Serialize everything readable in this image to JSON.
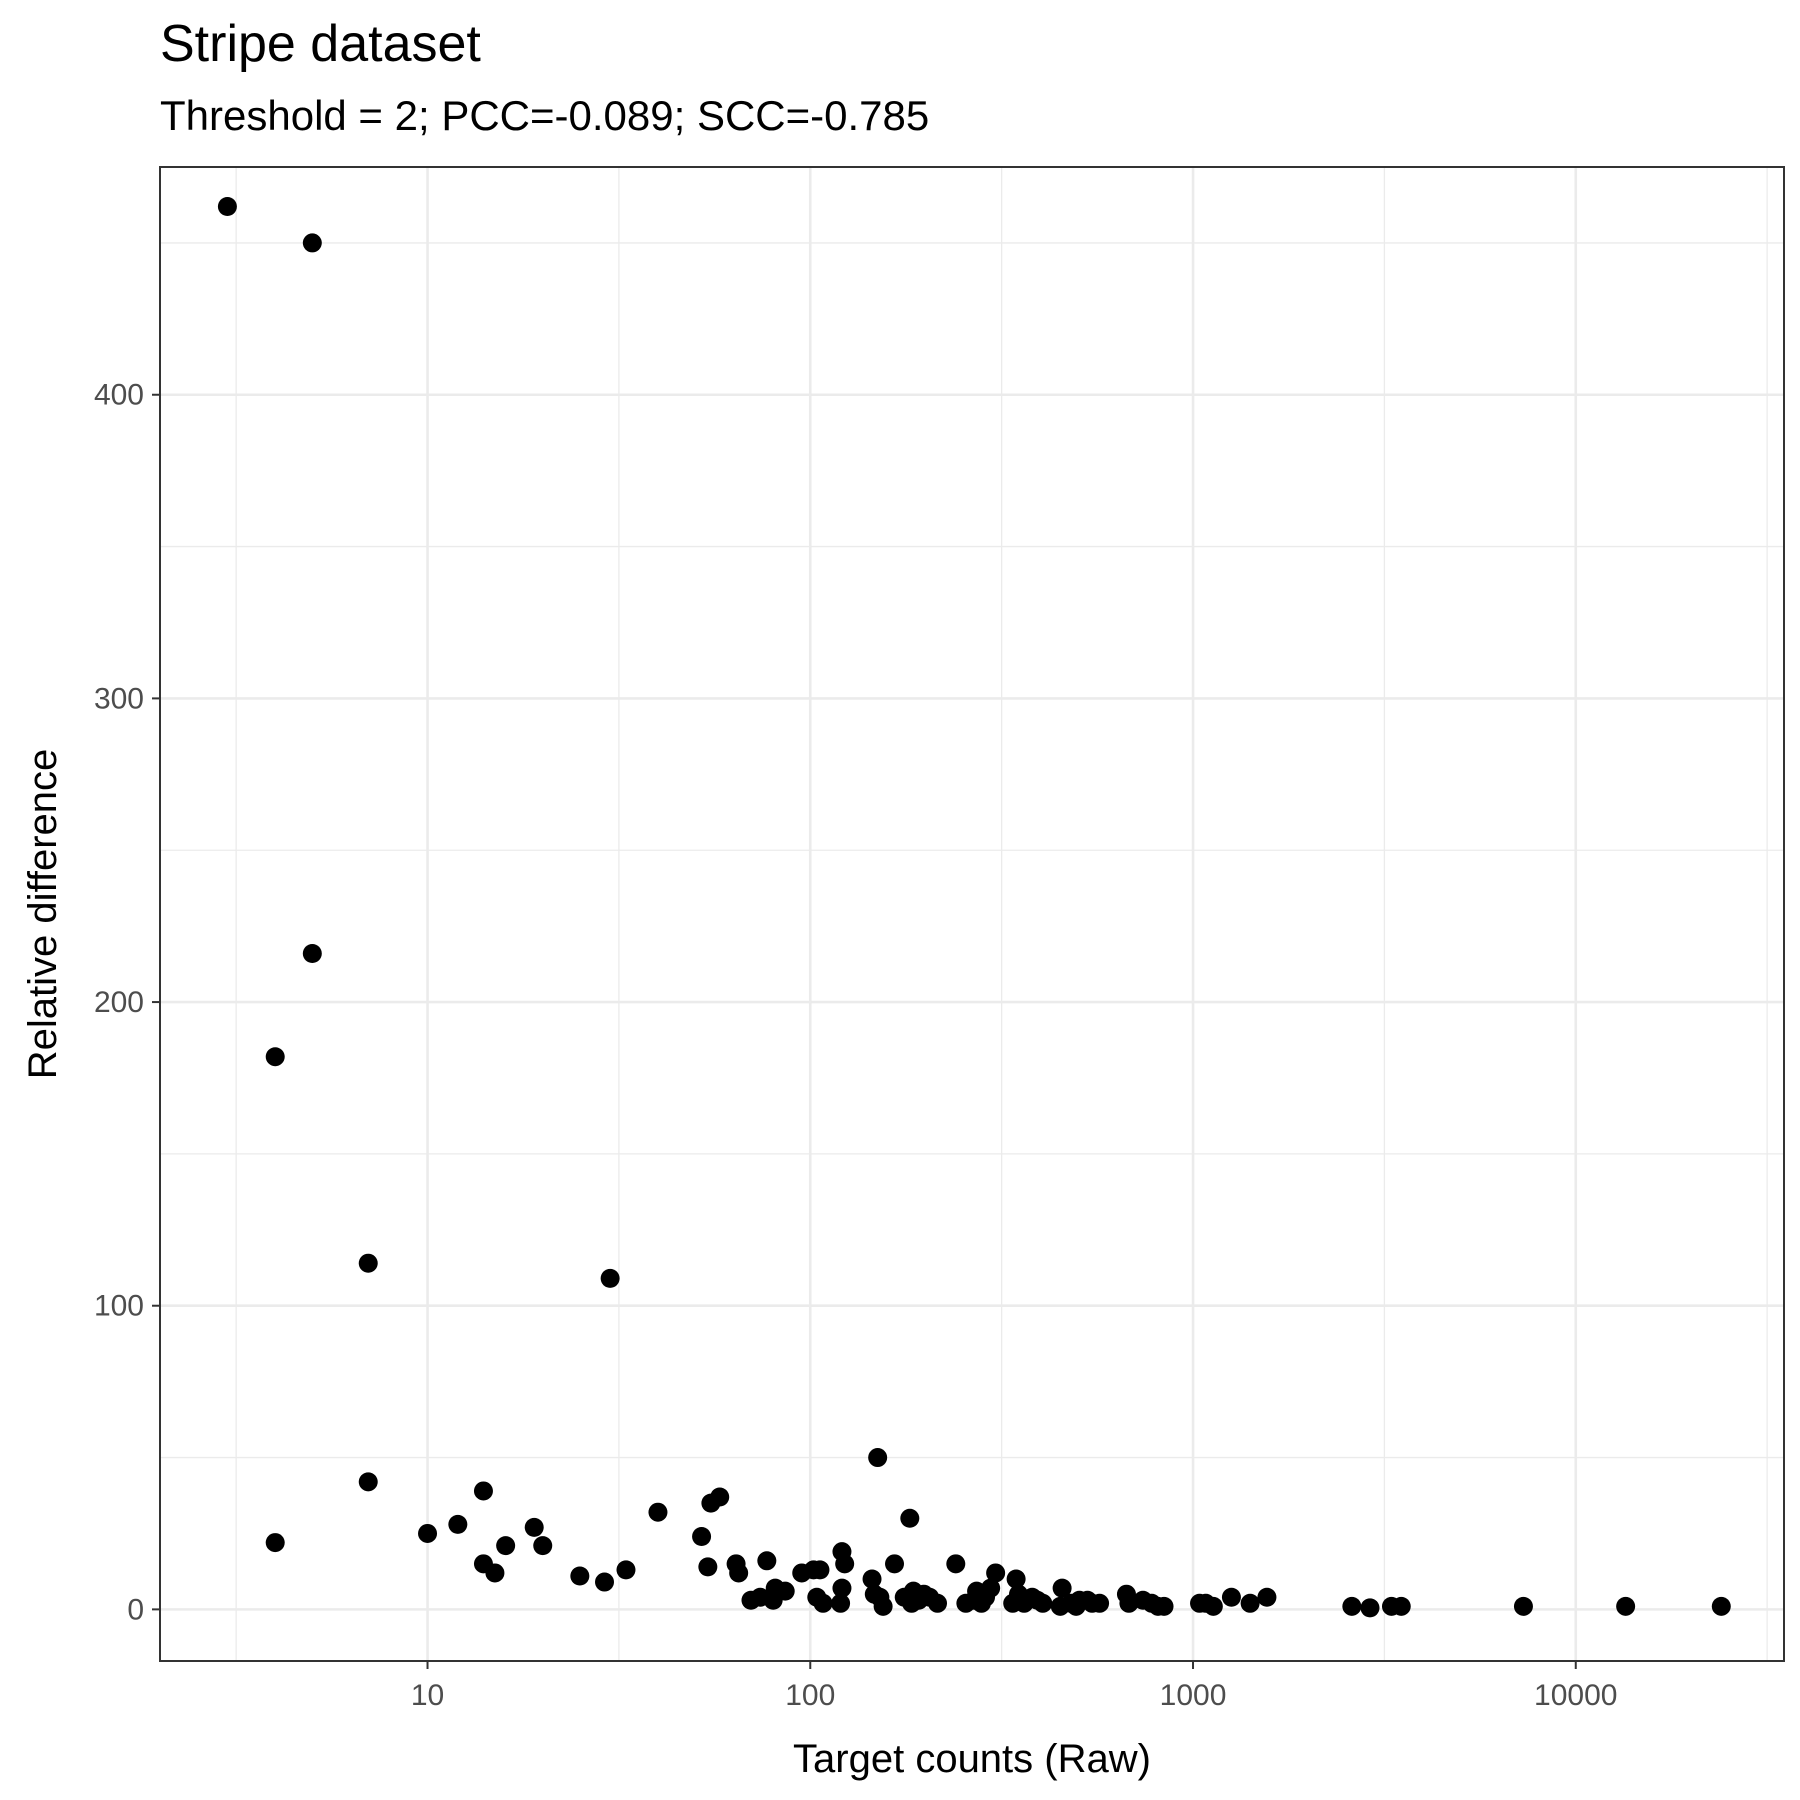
{
  "chart_data": {
    "type": "scatter",
    "title": "Stripe dataset",
    "subtitle": "Threshold = 2; PCC=-0.089; SCC=-0.785",
    "xlabel": "Target counts (Raw)",
    "ylabel": "Relative difference",
    "x_scale": "log10",
    "xlim": [
      2,
      35000
    ],
    "ylim": [
      -17,
      475
    ],
    "x_ticks": [
      10,
      100,
      1000,
      10000
    ],
    "x_tick_labels": [
      "10",
      "100",
      "1000",
      "10000"
    ],
    "y_ticks": [
      0,
      100,
      200,
      300,
      400
    ],
    "y_tick_labels": [
      "0",
      "100",
      "200",
      "300",
      "400"
    ],
    "grid": true,
    "point_color": "#000000",
    "points": [
      {
        "x": 3,
        "y": 462
      },
      {
        "x": 5,
        "y": 450
      },
      {
        "x": 5,
        "y": 216
      },
      {
        "x": 4,
        "y": 182
      },
      {
        "x": 7,
        "y": 114
      },
      {
        "x": 30,
        "y": 109
      },
      {
        "x": 7,
        "y": 42
      },
      {
        "x": 4,
        "y": 22
      },
      {
        "x": 10,
        "y": 25
      },
      {
        "x": 12,
        "y": 28
      },
      {
        "x": 14,
        "y": 39
      },
      {
        "x": 14,
        "y": 15
      },
      {
        "x": 15,
        "y": 12
      },
      {
        "x": 16,
        "y": 21
      },
      {
        "x": 19,
        "y": 27
      },
      {
        "x": 20,
        "y": 21
      },
      {
        "x": 25,
        "y": 11
      },
      {
        "x": 29,
        "y": 9
      },
      {
        "x": 33,
        "y": 13
      },
      {
        "x": 40,
        "y": 32
      },
      {
        "x": 52,
        "y": 24
      },
      {
        "x": 54,
        "y": 14
      },
      {
        "x": 55,
        "y": 35
      },
      {
        "x": 58,
        "y": 37
      },
      {
        "x": 64,
        "y": 15
      },
      {
        "x": 65,
        "y": 12
      },
      {
        "x": 70,
        "y": 3
      },
      {
        "x": 74,
        "y": 4
      },
      {
        "x": 77,
        "y": 16
      },
      {
        "x": 80,
        "y": 3
      },
      {
        "x": 81,
        "y": 7
      },
      {
        "x": 86,
        "y": 6
      },
      {
        "x": 95,
        "y": 12
      },
      {
        "x": 102,
        "y": 13
      },
      {
        "x": 104,
        "y": 4
      },
      {
        "x": 106,
        "y": 13
      },
      {
        "x": 108,
        "y": 2
      },
      {
        "x": 120,
        "y": 2
      },
      {
        "x": 121,
        "y": 19
      },
      {
        "x": 121,
        "y": 7
      },
      {
        "x": 123,
        "y": 15
      },
      {
        "x": 145,
        "y": 10
      },
      {
        "x": 147,
        "y": 5
      },
      {
        "x": 150,
        "y": 50
      },
      {
        "x": 152,
        "y": 4
      },
      {
        "x": 155,
        "y": 1
      },
      {
        "x": 166,
        "y": 15
      },
      {
        "x": 176,
        "y": 4
      },
      {
        "x": 182,
        "y": 30
      },
      {
        "x": 184,
        "y": 2
      },
      {
        "x": 186,
        "y": 6
      },
      {
        "x": 192,
        "y": 3
      },
      {
        "x": 198,
        "y": 5
      },
      {
        "x": 205,
        "y": 4
      },
      {
        "x": 215,
        "y": 2
      },
      {
        "x": 240,
        "y": 15
      },
      {
        "x": 255,
        "y": 2
      },
      {
        "x": 268,
        "y": 3
      },
      {
        "x": 272,
        "y": 6
      },
      {
        "x": 280,
        "y": 2
      },
      {
        "x": 287,
        "y": 4
      },
      {
        "x": 296,
        "y": 7
      },
      {
        "x": 305,
        "y": 12
      },
      {
        "x": 338,
        "y": 2
      },
      {
        "x": 345,
        "y": 10
      },
      {
        "x": 350,
        "y": 5
      },
      {
        "x": 362,
        "y": 2
      },
      {
        "x": 380,
        "y": 4
      },
      {
        "x": 392,
        "y": 3
      },
      {
        "x": 405,
        "y": 2
      },
      {
        "x": 450,
        "y": 1
      },
      {
        "x": 455,
        "y": 7
      },
      {
        "x": 480,
        "y": 2
      },
      {
        "x": 495,
        "y": 1
      },
      {
        "x": 505,
        "y": 3
      },
      {
        "x": 530,
        "y": 3
      },
      {
        "x": 545,
        "y": 2
      },
      {
        "x": 570,
        "y": 2
      },
      {
        "x": 670,
        "y": 5
      },
      {
        "x": 680,
        "y": 2
      },
      {
        "x": 740,
        "y": 3
      },
      {
        "x": 780,
        "y": 2
      },
      {
        "x": 810,
        "y": 1
      },
      {
        "x": 840,
        "y": 1
      },
      {
        "x": 1040,
        "y": 2
      },
      {
        "x": 1080,
        "y": 2
      },
      {
        "x": 1130,
        "y": 1
      },
      {
        "x": 1260,
        "y": 4
      },
      {
        "x": 1410,
        "y": 2
      },
      {
        "x": 1560,
        "y": 4
      },
      {
        "x": 2600,
        "y": 1
      },
      {
        "x": 2900,
        "y": 0.5
      },
      {
        "x": 3300,
        "y": 1
      },
      {
        "x": 3500,
        "y": 1
      },
      {
        "x": 7300,
        "y": 1
      },
      {
        "x": 13500,
        "y": 1
      },
      {
        "x": 24000,
        "y": 1
      }
    ]
  }
}
